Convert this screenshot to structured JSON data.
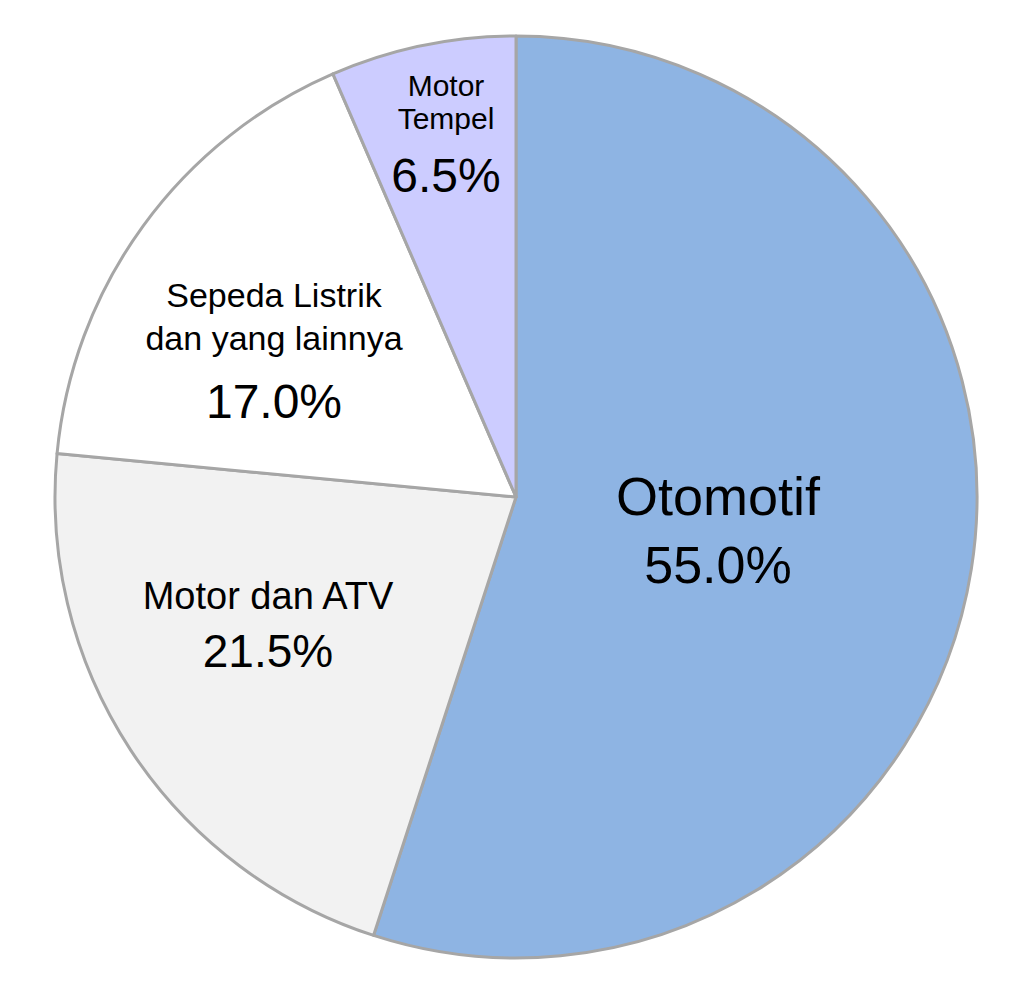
{
  "chart_data": {
    "type": "pie",
    "categories": [
      "Otomotif",
      "Motor dan ATV",
      "Sepeda Listrik dan yang lainnya",
      "Motor Tempel"
    ],
    "values": [
      55.0,
      21.5,
      17.0,
      6.5
    ],
    "value_labels": [
      "55.0%",
      "21.5%",
      "17.0%",
      "6.5%"
    ],
    "colors": [
      "#8eb4e3",
      "#f2f2f2",
      "#ffffff",
      "#ccccff"
    ],
    "data_labels": true
  }
}
